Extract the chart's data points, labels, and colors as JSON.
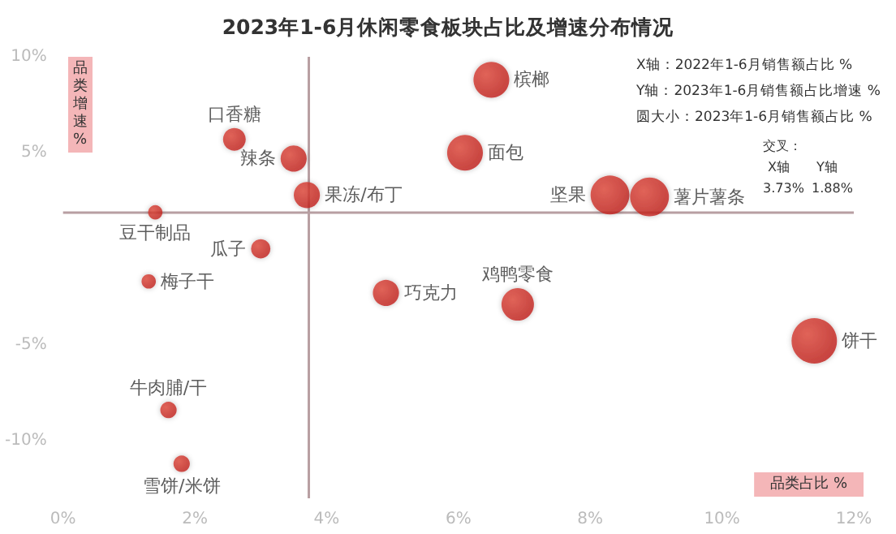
{
  "chart_data": {
    "type": "bubble",
    "title": "2023年1-6月休闲零食板块占比及增速分布情况",
    "xlabel": "品类占比 %",
    "ylabel": "品类增速%",
    "x": [
      6.5,
      2.6,
      3.5,
      6.1,
      3.7,
      1.4,
      8.3,
      8.9,
      3.0,
      1.3,
      4.9,
      6.9,
      11.4,
      1.6,
      1.8
    ],
    "series": [
      {
        "color": "#c0201c",
        "values": [
          8.8,
          5.7,
          4.7,
          5.0,
          2.8,
          1.9,
          2.8,
          2.7,
          0.0,
          -1.7,
          -2.3,
          -2.9,
          -4.8,
          -8.4,
          -11.2
        ],
        "sizes": [
          0.62,
          0.25,
          0.33,
          0.62,
          0.33,
          0.1,
          0.73,
          0.73,
          0.18,
          0.1,
          0.33,
          0.51,
          1,
          0.13,
          0.13
        ],
        "value_labels": [
          "槟榔",
          "口香糖",
          "辣条",
          "面包",
          "果冻/布丁",
          "豆干制品",
          "坚果",
          "薯片薯条",
          "瓜子",
          "梅子干",
          "巧克力",
          "鸡鸭零食",
          "饼干",
          "牛肉脯/干",
          "雪饼/米饼"
        ]
      }
    ],
    "xlim": [
      0,
      12
    ],
    "xticks": [
      {
        "value": 0,
        "label": "0%"
      },
      {
        "value": 2,
        "label": "2%"
      },
      {
        "value": 4,
        "label": "4%"
      },
      {
        "value": 6,
        "label": "6%"
      },
      {
        "value": 8,
        "label": "8%"
      },
      {
        "value": 10,
        "label": "10%"
      },
      {
        "value": 12,
        "label": "12%"
      }
    ],
    "ylim": [
      -13,
      10
    ],
    "yticks": [
      {
        "value": -10,
        "label": "-10%"
      },
      {
        "value": -5,
        "label": "-5%"
      },
      {
        "value": 5,
        "label": "5%"
      },
      {
        "value": 10,
        "label": "10%"
      }
    ],
    "ref_lines": [
      {
        "axis": "x",
        "value": 3.73,
        "color": "#b89fa2"
      },
      {
        "axis": "y",
        "value": 1.88,
        "color": "#b89fa2"
      }
    ],
    "annotations": [
      "X轴：2022年1-6月销售额占比 %",
      "Y轴：2023年1-6月销售额占比增速 %",
      "圆大小：2023年1-6月销售额占比 %",
      "交叉：",
      "X轴",
      "Y轴",
      "3.73%",
      "1.88%"
    ],
    "grid": false
  }
}
